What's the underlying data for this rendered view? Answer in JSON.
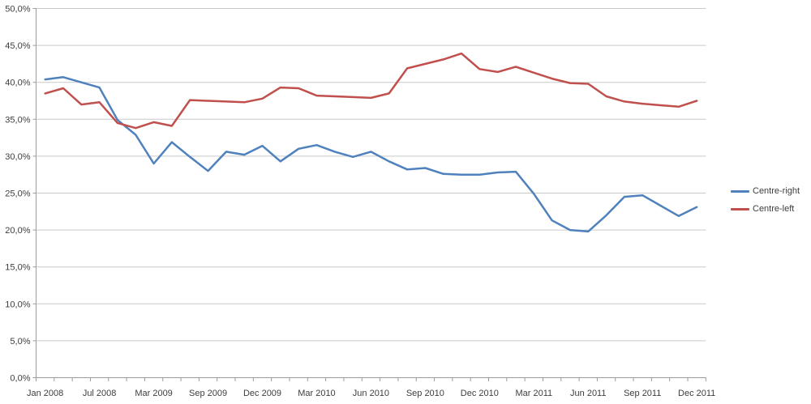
{
  "chart_data": {
    "type": "line",
    "title": "",
    "xlabel": "",
    "ylabel": "",
    "ylim": [
      0,
      50
    ],
    "y_tick_step": 5,
    "y_tick_labels": [
      "0,0%",
      "5,0%",
      "10,0%",
      "15,0%",
      "20,0%",
      "25,0%",
      "30,0%",
      "35,0%",
      "40,0%",
      "45,0%",
      "50,0%"
    ],
    "x_labels": [
      "Jan 2008",
      "Jul 2008",
      "Mar 2009",
      "Sep 2009",
      "Dec 2009",
      "Mar 2010",
      "Jun 2010",
      "Sep 2010",
      "Dec 2010",
      "Mar 2011",
      "Jun 2011",
      "Sep 2011",
      "Dec 2011"
    ],
    "x_label_every": 3,
    "n_points": 37,
    "grid": "horizontal",
    "legend_position": "right",
    "gridline_color": "#C9C9C9",
    "axis_color": "#9B9B9B",
    "label_color": "#3D3D3D",
    "background_color": "#FFFFFF",
    "series": [
      {
        "name": "Centre-right",
        "color": "#4F81BD",
        "values": [
          40.4,
          40.7,
          40.0,
          39.3,
          34.9,
          32.9,
          29.0,
          31.9,
          29.9,
          28.0,
          30.6,
          30.2,
          31.4,
          29.3,
          31.0,
          31.5,
          30.6,
          29.9,
          30.6,
          29.3,
          28.2,
          28.4,
          27.6,
          27.5,
          27.5,
          27.8,
          27.9,
          24.9,
          21.3,
          20.0,
          19.8,
          22.0,
          24.5,
          24.7,
          23.3,
          21.9,
          23.1
        ]
      },
      {
        "name": "Centre-left",
        "color": "#C0504D",
        "values": [
          38.5,
          39.2,
          37.0,
          37.3,
          34.5,
          33.8,
          34.6,
          34.1,
          37.6,
          37.5,
          37.4,
          37.3,
          37.8,
          39.3,
          39.2,
          38.2,
          38.1,
          38.0,
          37.9,
          38.5,
          41.9,
          42.5,
          43.1,
          43.9,
          41.8,
          41.4,
          42.1,
          41.3,
          40.5,
          39.9,
          39.8,
          38.1,
          37.4,
          37.1,
          36.9,
          36.7,
          37.5
        ]
      }
    ]
  },
  "legend": {
    "items": [
      {
        "label": "Centre-right"
      },
      {
        "label": "Centre-left"
      }
    ]
  }
}
